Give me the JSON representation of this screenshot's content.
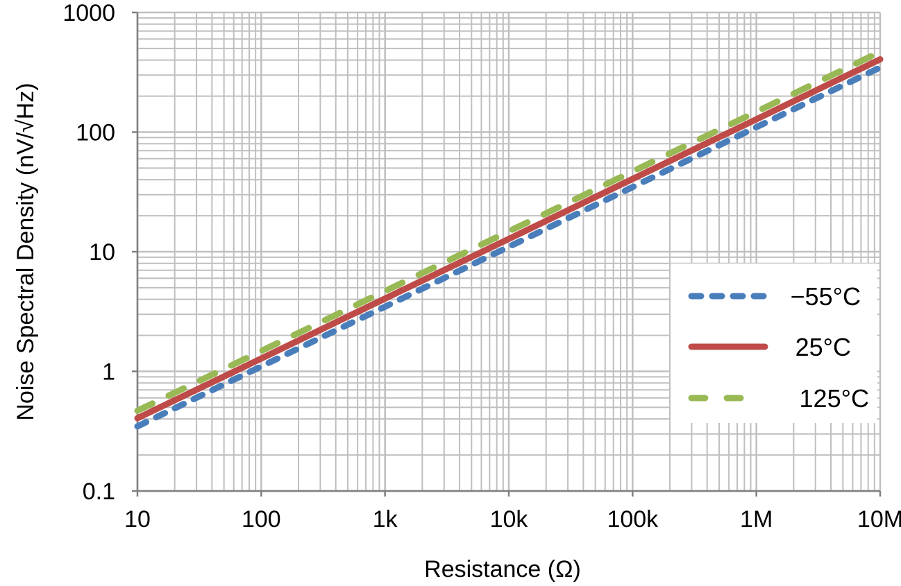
{
  "chart_data": {
    "type": "line",
    "title": "",
    "xlabel": "Resistance (Ω)",
    "ylabel": "Noise Spectral Density (nV/√Hz)",
    "x_scale": "log",
    "y_scale": "log",
    "xlim": [
      10,
      10000000
    ],
    "ylim": [
      0.1,
      1000
    ],
    "grid": true,
    "legend_position": "lower-right",
    "x_ticks": [
      10,
      100,
      1000,
      10000,
      100000,
      1000000,
      10000000
    ],
    "x_tick_labels": [
      "10",
      "100",
      "1k",
      "10k",
      "100k",
      "1M",
      "10M"
    ],
    "y_ticks": [
      0.1,
      1,
      10,
      100,
      1000
    ],
    "y_tick_labels": [
      "0.1",
      "1",
      "10",
      "100",
      "1000"
    ],
    "x": [
      10,
      100,
      1000,
      10000,
      100000,
      1000000,
      10000000
    ],
    "series": [
      {
        "name": "−55°C",
        "color": "#4a7ebb",
        "style": "dashed",
        "values": [
          0.347,
          1.1,
          3.47,
          11.0,
          34.7,
          110,
          347
        ]
      },
      {
        "name": "25°C",
        "color": "#be4b48",
        "style": "solid",
        "values": [
          0.406,
          1.28,
          4.06,
          12.8,
          40.6,
          128,
          406
        ]
      },
      {
        "name": "125°C",
        "color": "#98b954",
        "style": "long-dash",
        "values": [
          0.469,
          1.48,
          4.69,
          14.8,
          46.9,
          148,
          469
        ]
      }
    ]
  }
}
